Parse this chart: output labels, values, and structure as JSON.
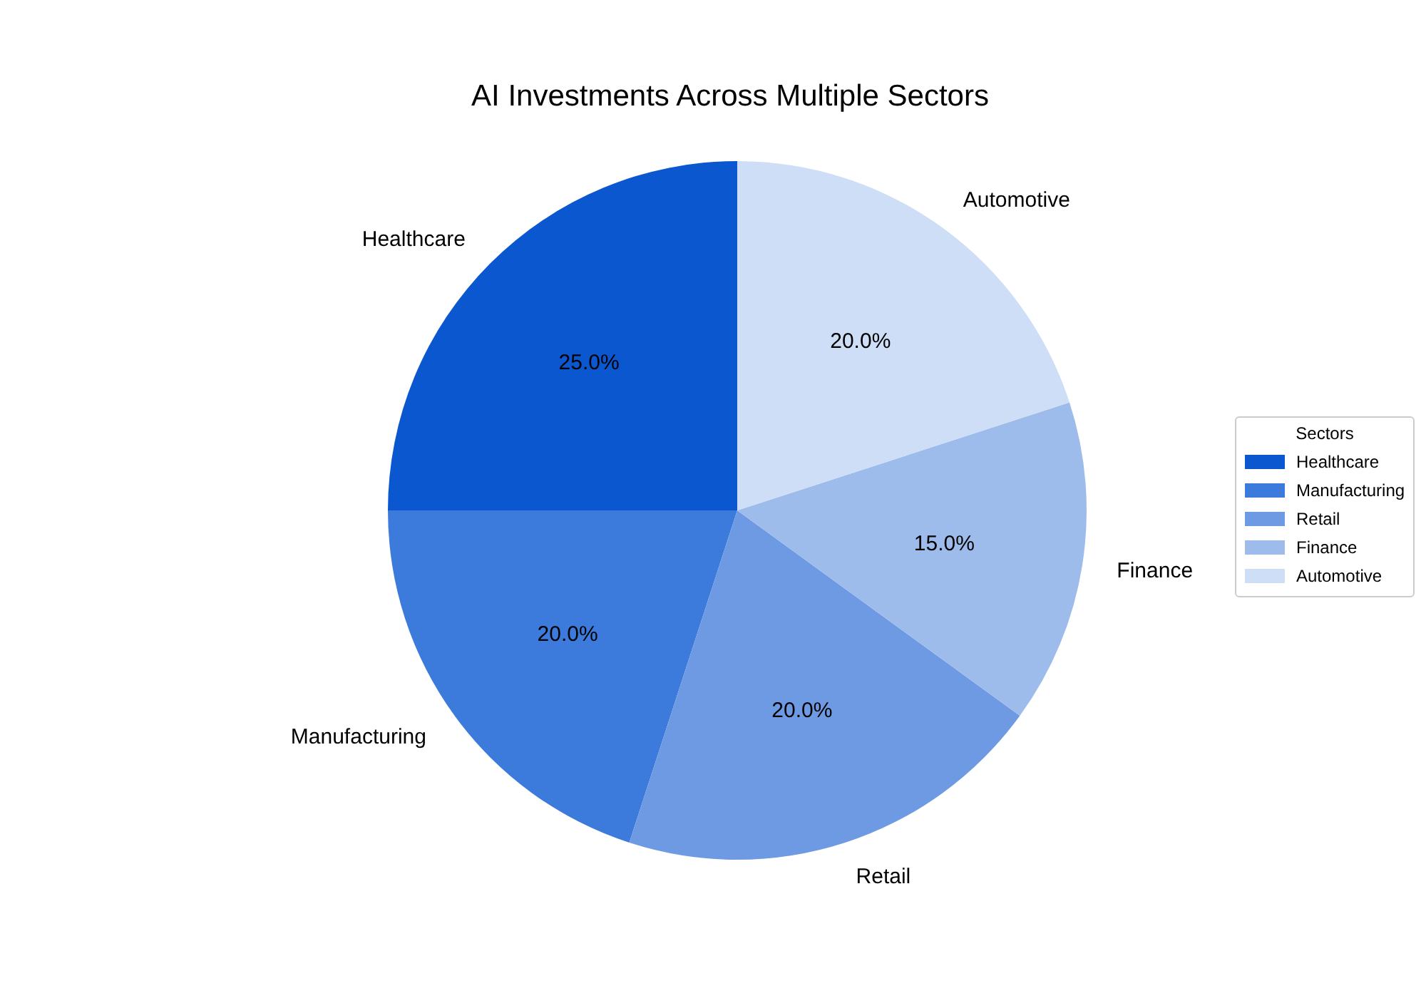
{
  "chart_data": {
    "type": "pie",
    "title": "AI Investments Across Multiple Sectors",
    "categories": [
      "Healthcare",
      "Manufacturing",
      "Retail",
      "Finance",
      "Automotive"
    ],
    "values": [
      25,
      20,
      20,
      15,
      20
    ],
    "colors": [
      "#0b57d0",
      "#3c7bdc",
      "#6d9ae2",
      "#9ebceb",
      "#cedef6"
    ],
    "value_labels": [
      "25.0%",
      "20.0%",
      "20.0%",
      "15.0%",
      "20.0%"
    ],
    "legend": "right",
    "legend_title": "Sectors"
  }
}
